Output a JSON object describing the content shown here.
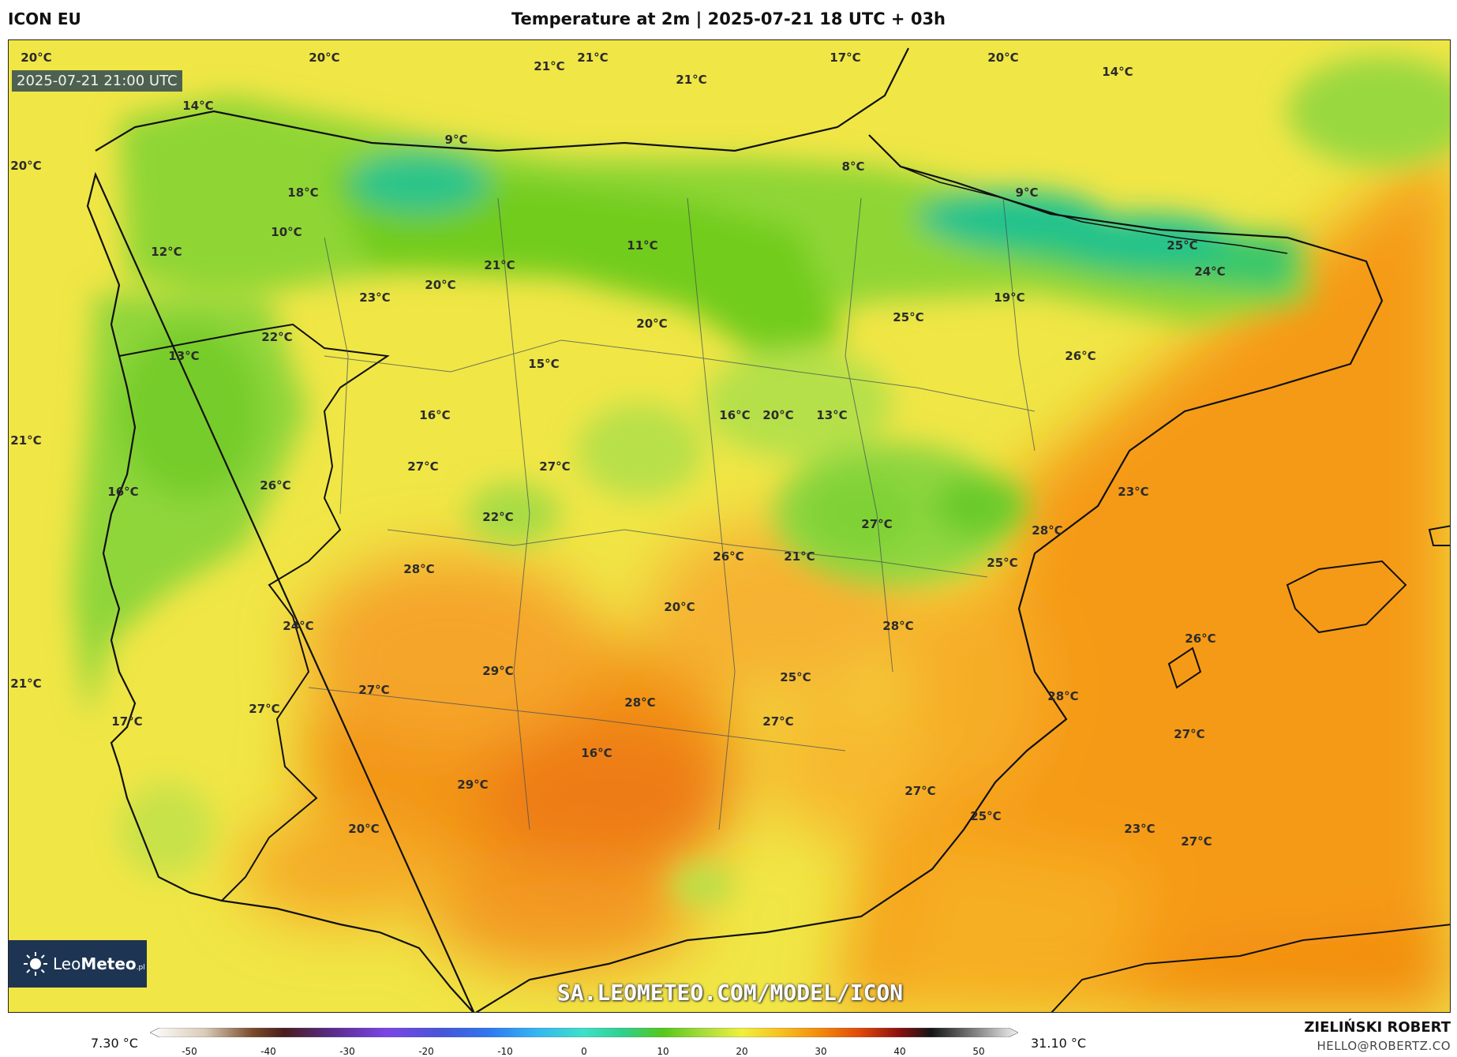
{
  "header": {
    "model": "ICON EU",
    "title": "Temperature at 2m | 2025-07-21 18 UTC + 03h"
  },
  "map": {
    "valid_time": "2025-07-21 21:00 UTC",
    "watermark": "SA.LEOMETEO.COM/MODEL/ICON",
    "logo": {
      "name": "LeoMeteo",
      "part1": "Leo",
      "part2": "Meteo",
      "suffix": ".pl",
      "icon": "sun-icon"
    },
    "labels": [
      {
        "t": "20°C"
      },
      {
        "t": "20°C"
      },
      {
        "t": "21°C"
      },
      {
        "t": "21°C"
      },
      {
        "t": "21°C"
      },
      {
        "t": "17°C"
      },
      {
        "t": "20°C"
      },
      {
        "t": "14°C"
      },
      {
        "t": "14°C"
      },
      {
        "t": "9°C"
      },
      {
        "t": "20°C"
      },
      {
        "t": "8°C"
      },
      {
        "t": "9°C"
      },
      {
        "t": "18°C"
      },
      {
        "t": "10°C"
      },
      {
        "t": "11°C"
      },
      {
        "t": "12°C"
      },
      {
        "t": "21°C"
      },
      {
        "t": "20°C"
      },
      {
        "t": "25°C"
      },
      {
        "t": "24°C"
      },
      {
        "t": "23°C"
      },
      {
        "t": "19°C"
      },
      {
        "t": "22°C"
      },
      {
        "t": "20°C"
      },
      {
        "t": "25°C"
      },
      {
        "t": "13°C"
      },
      {
        "t": "15°C"
      },
      {
        "t": "26°C"
      },
      {
        "t": "16°C"
      },
      {
        "t": "16°C"
      },
      {
        "t": "20°C"
      },
      {
        "t": "13°C"
      },
      {
        "t": "21°C"
      },
      {
        "t": "27°C"
      },
      {
        "t": "27°C"
      },
      {
        "t": "26°C"
      },
      {
        "t": "16°C"
      },
      {
        "t": "23°C"
      },
      {
        "t": "22°C"
      },
      {
        "t": "27°C"
      },
      {
        "t": "28°C"
      },
      {
        "t": "26°C"
      },
      {
        "t": "21°C"
      },
      {
        "t": "28°C"
      },
      {
        "t": "25°C"
      },
      {
        "t": "20°C"
      },
      {
        "t": "24°C"
      },
      {
        "t": "28°C"
      },
      {
        "t": "26°C"
      },
      {
        "t": "21°C"
      },
      {
        "t": "29°C"
      },
      {
        "t": "27°C"
      },
      {
        "t": "25°C"
      },
      {
        "t": "27°C"
      },
      {
        "t": "28°C"
      },
      {
        "t": "28°C"
      },
      {
        "t": "17°C"
      },
      {
        "t": "27°C"
      },
      {
        "t": "27°C"
      },
      {
        "t": "16°C"
      },
      {
        "t": "29°C"
      },
      {
        "t": "27°C"
      },
      {
        "t": "25°C"
      },
      {
        "t": "20°C"
      },
      {
        "t": "23°C"
      },
      {
        "t": "27°C"
      }
    ]
  },
  "colorbar": {
    "min_label": "7.30 °C",
    "max_label": "31.10 °C",
    "range": [
      -55,
      55
    ],
    "ticks": [
      "-50",
      "-40",
      "-30",
      "-20",
      "-10",
      "0",
      "10",
      "20",
      "30",
      "40",
      "50"
    ],
    "tick_values": [
      -50,
      -40,
      -30,
      -20,
      -10,
      0,
      10,
      20,
      30,
      40,
      50
    ],
    "stops": [
      {
        "v": -55,
        "c": "#ffffff"
      },
      {
        "v": -48,
        "c": "#d8cbb8"
      },
      {
        "v": -42,
        "c": "#7a4a2a"
      },
      {
        "v": -38,
        "c": "#4a1d1d"
      },
      {
        "v": -32,
        "c": "#5a2b8a"
      },
      {
        "v": -25,
        "c": "#7b45e6"
      },
      {
        "v": -18,
        "c": "#4656d8"
      },
      {
        "v": -12,
        "c": "#2f78f0"
      },
      {
        "v": -6,
        "c": "#35b6f2"
      },
      {
        "v": 0,
        "c": "#3ee0c8"
      },
      {
        "v": 5,
        "c": "#2fd08c"
      },
      {
        "v": 10,
        "c": "#55c81a"
      },
      {
        "v": 15,
        "c": "#a6dc3c"
      },
      {
        "v": 20,
        "c": "#f0f03c"
      },
      {
        "v": 25,
        "c": "#f7c020"
      },
      {
        "v": 30,
        "c": "#f28a0a"
      },
      {
        "v": 35,
        "c": "#e0480a"
      },
      {
        "v": 40,
        "c": "#8a1010"
      },
      {
        "v": 44,
        "c": "#151515"
      },
      {
        "v": 50,
        "c": "#8a8a8a"
      },
      {
        "v": 55,
        "c": "#f2f2f2"
      }
    ]
  },
  "footer": {
    "author": "ZIELIŃSKI ROBERT",
    "email": "HELLO@ROBERTZ.CO"
  }
}
